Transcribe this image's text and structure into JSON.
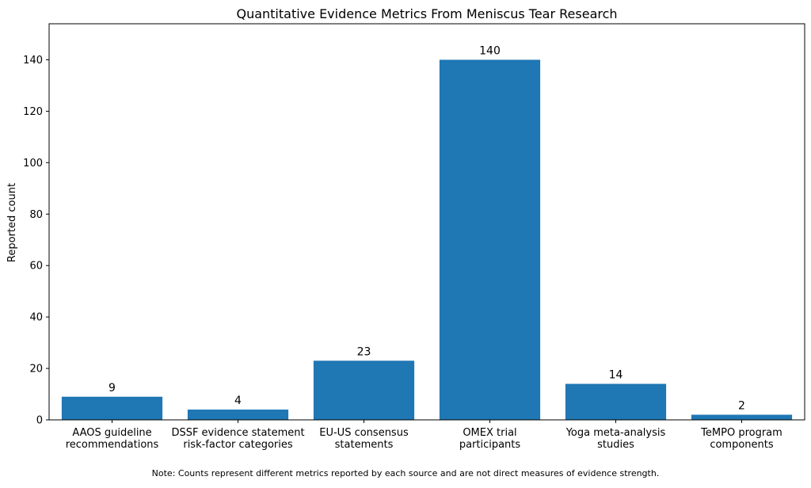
{
  "chart_data": {
    "type": "bar",
    "title": "Quantitative Evidence Metrics From Meniscus Tear Research",
    "xlabel": "",
    "ylabel": "Reported count",
    "categories": [
      [
        "AAOS guideline",
        "recommendations"
      ],
      [
        "DSSF evidence statement",
        "risk-factor categories"
      ],
      [
        "EU-US consensus",
        "statements"
      ],
      [
        "OMEX trial",
        "participants"
      ],
      [
        "Yoga meta-analysis",
        "studies"
      ],
      [
        "TeMPO program",
        "components"
      ]
    ],
    "values": [
      9,
      4,
      23,
      140,
      14,
      2
    ],
    "data_labels": [
      "9",
      "4",
      "23",
      "140",
      "14",
      "2"
    ],
    "ylim": [
      0,
      154
    ],
    "yticks": [
      0,
      20,
      40,
      60,
      80,
      100,
      120,
      140
    ],
    "bar_color": "#1f77b4",
    "grid": false,
    "legend": "none"
  },
  "note": "Note: Counts represent different metrics reported by each source and are not direct measures of evidence strength."
}
